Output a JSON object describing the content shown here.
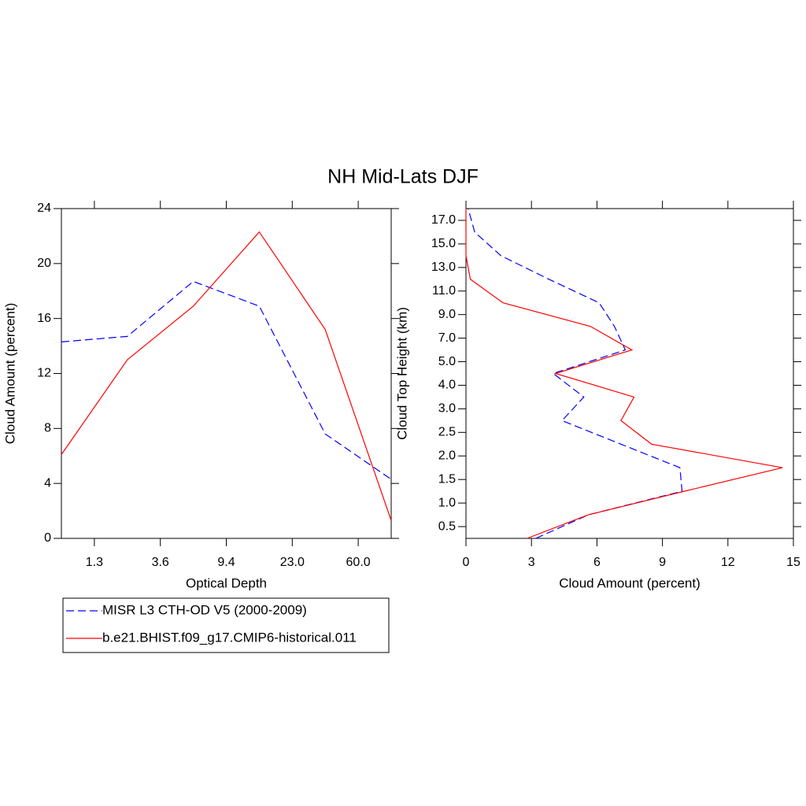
{
  "title": "NH Mid-Lats DJF",
  "chart_data": [
    {
      "type": "line",
      "orientation": "vertical",
      "xlabel": "Optical Depth",
      "ylabel": "Cloud Amount (percent)",
      "categories": [
        null,
        null,
        null,
        null,
        null,
        null
      ],
      "xlim": [
        0,
        5
      ],
      "xticks": [
        {
          "value": 0.5,
          "label": "1.3"
        },
        {
          "value": 1.5,
          "label": "3.6"
        },
        {
          "value": 2.5,
          "label": "9.4"
        },
        {
          "value": 3.5,
          "label": "23.0"
        },
        {
          "value": 4.5,
          "label": "60.0"
        }
      ],
      "ylim": [
        0,
        24
      ],
      "yticks": [
        0,
        4,
        8,
        12,
        16,
        20,
        24
      ],
      "series": [
        {
          "name": "MISR L3 CTH-OD V5 (2000-2009)",
          "color": "#0000ff",
          "dash": "dashed",
          "values": [
            14.3,
            14.7,
            18.7,
            16.9,
            7.6,
            4.3
          ]
        },
        {
          "name": "b.e21.BHIST.f09_g17.CMIP6-historical.011",
          "color": "#ff0000",
          "dash": "solid",
          "values": [
            6.1,
            13.0,
            16.9,
            22.3,
            15.2,
            1.3
          ]
        }
      ]
    },
    {
      "type": "line",
      "orientation": "horizontal",
      "xlabel": "Cloud Amount (percent)",
      "ylabel": "Cloud Top Height (km)",
      "categories": [
        null,
        null,
        null,
        null,
        null,
        null,
        null,
        null,
        null,
        null,
        null,
        null,
        null,
        null,
        null
      ],
      "xlim": [
        0,
        15
      ],
      "xticks": [
        0,
        3,
        6,
        9,
        12,
        15
      ],
      "ylim": [
        0,
        14
      ],
      "yticks": [
        {
          "value": 0.5,
          "label": "0.5"
        },
        {
          "value": 1.5,
          "label": "1.0"
        },
        {
          "value": 2.5,
          "label": "1.5"
        },
        {
          "value": 3.5,
          "label": "2.0"
        },
        {
          "value": 4.5,
          "label": "2.5"
        },
        {
          "value": 5.5,
          "label": "3.0"
        },
        {
          "value": 6.5,
          "label": "4.0"
        },
        {
          "value": 7.5,
          "label": "5.0"
        },
        {
          "value": 8.5,
          "label": "7.0"
        },
        {
          "value": 9.5,
          "label": "9.0"
        },
        {
          "value": 10.5,
          "label": "11.0"
        },
        {
          "value": 11.5,
          "label": "13.0"
        },
        {
          "value": 12.5,
          "label": "15.0"
        },
        {
          "value": 13.5,
          "label": "17.0"
        }
      ],
      "series": [
        {
          "color": "#0000ff",
          "dash": "dashed",
          "values": [
            3.2,
            5.6,
            9.9,
            9.8,
            7.1,
            4.4,
            5.4,
            4.0,
            7.3,
            6.8,
            6.1,
            3.8,
            1.6,
            0.4,
            0.1
          ]
        },
        {
          "color": "#ff0000",
          "dash": "solid",
          "values": [
            2.8,
            5.6,
            10.0,
            14.5,
            8.5,
            7.1,
            7.7,
            4.1,
            7.6,
            5.7,
            1.7,
            0.2,
            0.0,
            0.0,
            0.0
          ]
        }
      ]
    }
  ]
}
